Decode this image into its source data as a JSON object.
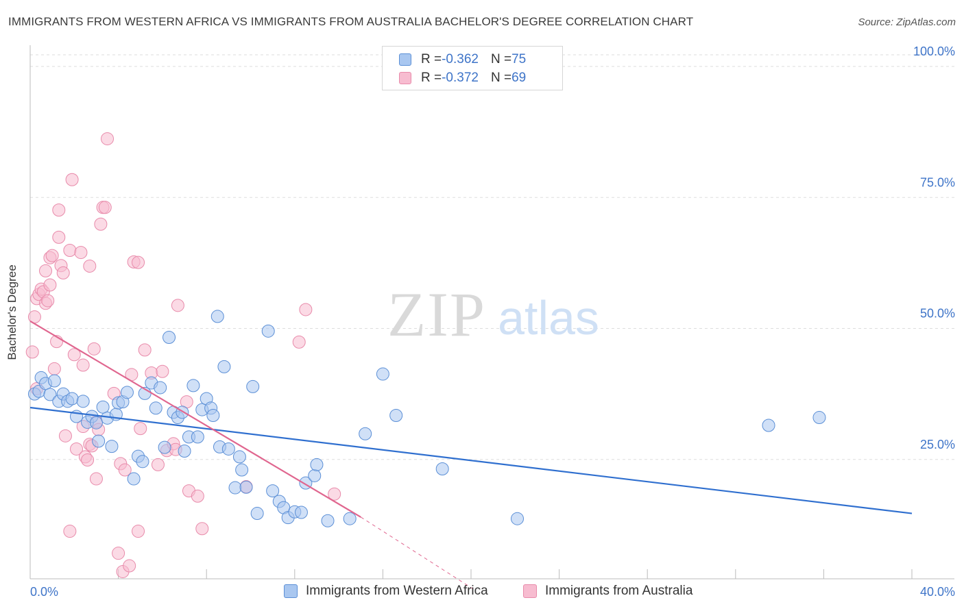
{
  "header": {
    "title": "IMMIGRANTS FROM WESTERN AFRICA VS IMMIGRANTS FROM AUSTRALIA BACHELOR'S DEGREE CORRELATION CHART",
    "source": "Source: ZipAtlas.com"
  },
  "watermark": {
    "zip": "ZIP",
    "atlas": "atlas"
  },
  "legend": {
    "series1": {
      "r_label": "R = ",
      "r_value": "-0.362",
      "n_label": "N = ",
      "n_value": "75"
    },
    "series2": {
      "r_label": "R = ",
      "r_value": "-0.372",
      "n_label": "N = ",
      "n_value": "69"
    }
  },
  "colors": {
    "blue_fill": "#a9c7f0",
    "blue_stroke": "#5b8fd6",
    "blue_line": "#2f6fcf",
    "pink_fill": "#f7bcd0",
    "pink_stroke": "#e88aaa",
    "pink_line": "#e0668f",
    "tick_label": "#3e74c8",
    "grid": "#dddddd"
  },
  "chart_data": {
    "type": "scatter",
    "title": "IMMIGRANTS FROM WESTERN AFRICA VS IMMIGRANTS FROM AUSTRALIA BACHELOR'S DEGREE CORRELATION CHART",
    "xlabel": "",
    "ylabel": "Bachelor's Degree",
    "xlim": [
      0,
      40
    ],
    "ylim": [
      0,
      100
    ],
    "x_tick_labels": [
      "0.0%",
      "40.0%"
    ],
    "y_ticks": [
      25,
      50,
      75,
      100
    ],
    "y_tick_labels": [
      "25.0%",
      "50.0%",
      "75.0%",
      "100.0%"
    ],
    "grid": true,
    "legend_position": "top-center",
    "series": [
      {
        "name": "Immigrants from Western Africa",
        "color": "blue",
        "r": -0.362,
        "n": 75,
        "trend": {
          "x": [
            0,
            40
          ],
          "y": [
            34.9,
            14.7
          ]
        },
        "points": [
          [
            0.2,
            37.5
          ],
          [
            0.4,
            38
          ],
          [
            0.5,
            40.6
          ],
          [
            0.7,
            39.5
          ],
          [
            0.9,
            37.4
          ],
          [
            1.1,
            40
          ],
          [
            1.3,
            36.1
          ],
          [
            1.5,
            37.5
          ],
          [
            1.7,
            36.1
          ],
          [
            1.9,
            36.6
          ],
          [
            2.1,
            33.2
          ],
          [
            2.4,
            36.1
          ],
          [
            2.6,
            32.1
          ],
          [
            2.8,
            33.2
          ],
          [
            3.0,
            32
          ],
          [
            3.1,
            28.5
          ],
          [
            3.3,
            35
          ],
          [
            3.5,
            32.9
          ],
          [
            3.7,
            27.5
          ],
          [
            3.9,
            33.6
          ],
          [
            4.0,
            35.8
          ],
          [
            4.2,
            36
          ],
          [
            4.4,
            37.8
          ],
          [
            4.7,
            21.3
          ],
          [
            4.9,
            25.6
          ],
          [
            5.1,
            24.6
          ],
          [
            5.2,
            37.6
          ],
          [
            5.5,
            39.6
          ],
          [
            5.7,
            34.8
          ],
          [
            5.9,
            38.7
          ],
          [
            6.1,
            27.3
          ],
          [
            6.3,
            48.3
          ],
          [
            6.5,
            34
          ],
          [
            6.7,
            33
          ],
          [
            6.9,
            34
          ],
          [
            7.0,
            26.6
          ],
          [
            7.2,
            29.3
          ],
          [
            7.4,
            39.1
          ],
          [
            7.6,
            29.3
          ],
          [
            7.8,
            34.5
          ],
          [
            8.0,
            36.6
          ],
          [
            8.2,
            34.8
          ],
          [
            8.3,
            33.4
          ],
          [
            8.5,
            52.3
          ],
          [
            8.6,
            27.4
          ],
          [
            8.8,
            42.7
          ],
          [
            9.0,
            27
          ],
          [
            9.3,
            19.6
          ],
          [
            9.5,
            25.5
          ],
          [
            9.6,
            23
          ],
          [
            9.8,
            19.7
          ],
          [
            10.1,
            38.9
          ],
          [
            10.3,
            14.7
          ],
          [
            10.8,
            49.5
          ],
          [
            11.0,
            19
          ],
          [
            11.3,
            17
          ],
          [
            11.5,
            15.8
          ],
          [
            11.7,
            13.9
          ],
          [
            12.0,
            15
          ],
          [
            12.3,
            14.9
          ],
          [
            12.5,
            20.5
          ],
          [
            12.9,
            21.9
          ],
          [
            13.0,
            24
          ],
          [
            13.5,
            13.3
          ],
          [
            14.5,
            13.7
          ],
          [
            15.2,
            29.9
          ],
          [
            16.0,
            41.3
          ],
          [
            16.6,
            33.4
          ],
          [
            18.7,
            23.2
          ],
          [
            22.1,
            13.7
          ],
          [
            33.5,
            31.5
          ],
          [
            35.8,
            33
          ]
        ]
      },
      {
        "name": "Immigrants from Australia",
        "color": "pink",
        "r": -0.372,
        "n": 69,
        "trend": {
          "x": [
            0,
            15
          ],
          "y": [
            51.4,
            14.0
          ]
        },
        "trend_dashed": {
          "x": [
            15,
            20.2
          ],
          "y": [
            14.0,
            0
          ]
        },
        "points": [
          [
            0.1,
            45.5
          ],
          [
            0.2,
            52.2
          ],
          [
            0.3,
            55.7
          ],
          [
            0.3,
            38.5
          ],
          [
            0.4,
            56.5
          ],
          [
            0.5,
            57.5
          ],
          [
            0.6,
            57
          ],
          [
            0.7,
            61
          ],
          [
            0.7,
            54.8
          ],
          [
            0.8,
            55.3
          ],
          [
            0.9,
            58.3
          ],
          [
            0.9,
            63.5
          ],
          [
            1.0,
            63.9
          ],
          [
            1.1,
            42.3
          ],
          [
            1.2,
            47.5
          ],
          [
            1.3,
            72.6
          ],
          [
            1.3,
            67.4
          ],
          [
            1.4,
            62
          ],
          [
            1.5,
            60.6
          ],
          [
            1.6,
            29.5
          ],
          [
            1.8,
            64.9
          ],
          [
            1.8,
            11.3
          ],
          [
            1.9,
            78.4
          ],
          [
            2.0,
            45
          ],
          [
            2.1,
            27
          ],
          [
            2.3,
            64.5
          ],
          [
            2.4,
            43
          ],
          [
            2.4,
            31.3
          ],
          [
            2.5,
            25.5
          ],
          [
            2.6,
            24.9
          ],
          [
            2.7,
            27.9
          ],
          [
            2.7,
            61.9
          ],
          [
            2.8,
            27.6
          ],
          [
            2.9,
            46.1
          ],
          [
            3.0,
            21.3
          ],
          [
            3.0,
            32.2
          ],
          [
            3.1,
            30.7
          ],
          [
            3.2,
            69.9
          ],
          [
            3.3,
            73.1
          ],
          [
            3.4,
            73.1
          ],
          [
            3.5,
            86.2
          ],
          [
            3.8,
            37.6
          ],
          [
            4.0,
            7.1
          ],
          [
            4.1,
            24.2
          ],
          [
            4.2,
            3.6
          ],
          [
            4.3,
            23
          ],
          [
            4.5,
            4.7
          ],
          [
            4.6,
            41.2
          ],
          [
            4.7,
            62.7
          ],
          [
            4.9,
            62.6
          ],
          [
            4.9,
            11.3
          ],
          [
            5.0,
            30.9
          ],
          [
            5.2,
            45.9
          ],
          [
            5.5,
            41.5
          ],
          [
            5.8,
            24
          ],
          [
            6.0,
            41.8
          ],
          [
            6.2,
            26.7
          ],
          [
            6.5,
            28
          ],
          [
            6.6,
            26.9
          ],
          [
            6.7,
            54.4
          ],
          [
            7.1,
            36
          ],
          [
            7.2,
            19
          ],
          [
            7.6,
            18
          ],
          [
            7.8,
            11.8
          ],
          [
            9.8,
            19.8
          ],
          [
            12.2,
            47.4
          ],
          [
            12.5,
            53.6
          ],
          [
            13.8,
            18.4
          ]
        ]
      }
    ]
  }
}
